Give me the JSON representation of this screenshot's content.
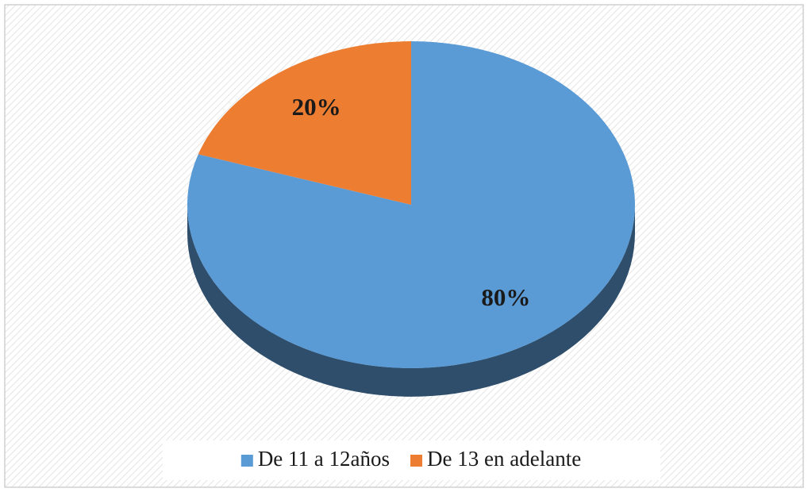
{
  "chart_data": {
    "type": "pie",
    "categories": [
      "De 11 a 12años",
      "De 13 en adelante"
    ],
    "values": [
      80,
      20
    ],
    "value_labels": [
      "80%",
      "20%"
    ],
    "colors": [
      "#5b9bd5",
      "#ed7d31"
    ],
    "legend": "bottom"
  }
}
